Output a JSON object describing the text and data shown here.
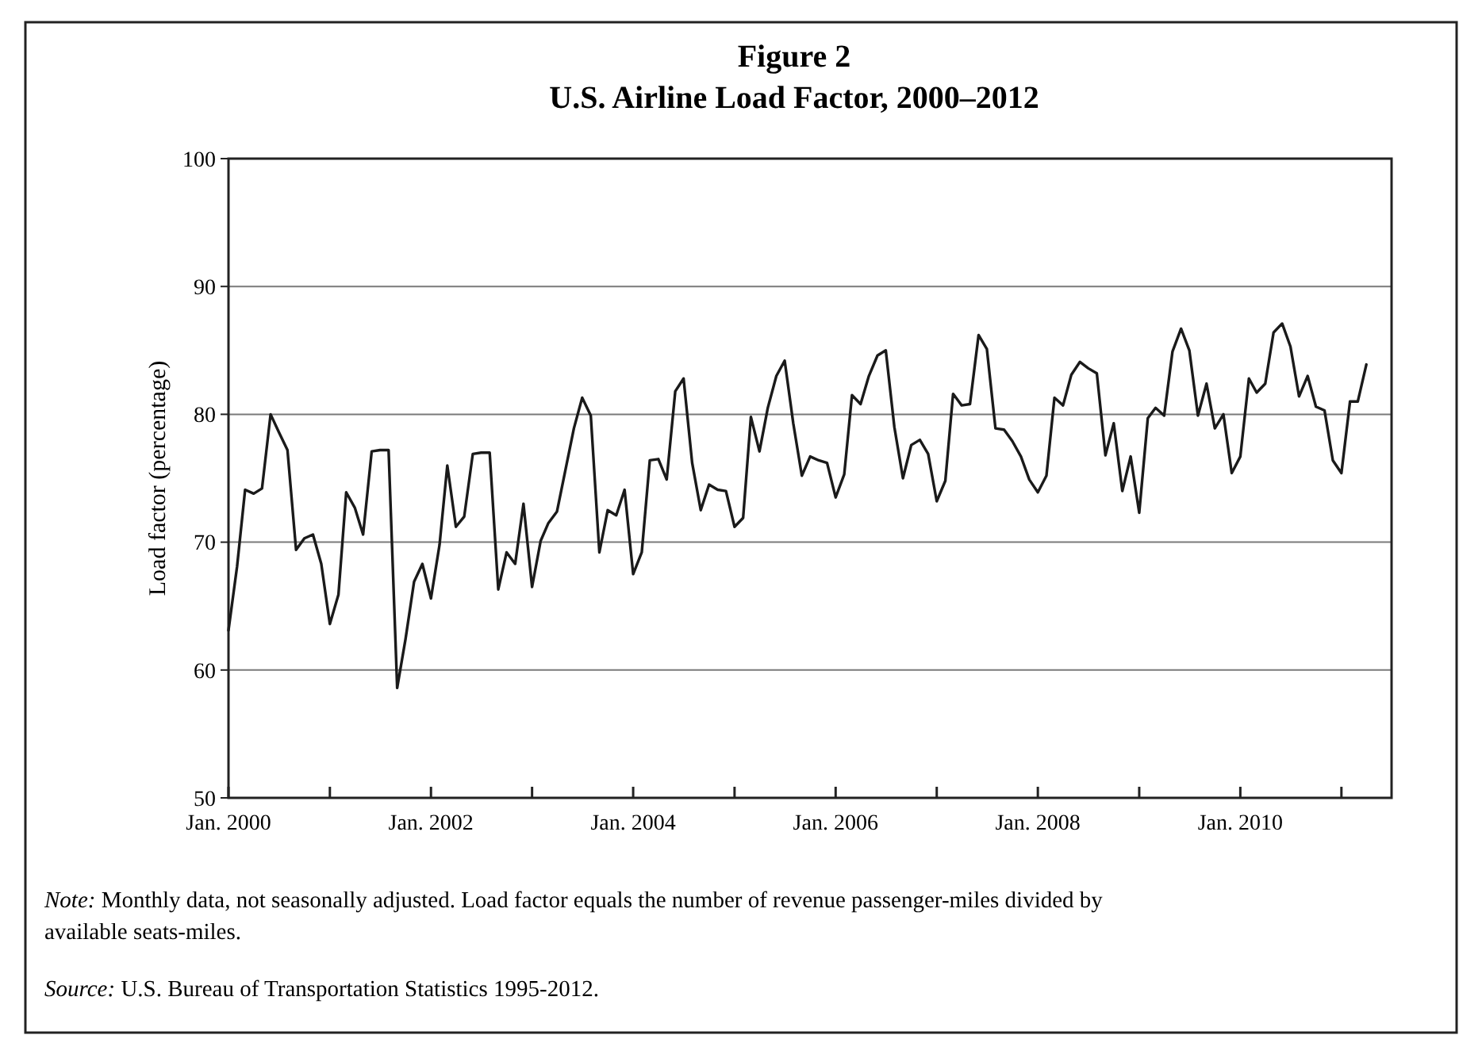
{
  "chart_data": {
    "type": "line",
    "title": "Figure 2",
    "subtitle": "U.S. Airline Load Factor, 2000–2012",
    "ylabel": "Load factor (percentage)",
    "annotations": [
      "Note: Monthly data, not seasonally adjusted. Load factor equals the number of revenue passenger-miles divided by available seats-miles.",
      "Source: U.S. Bureau of Transportation Statistics 1995-2012."
    ],
    "color": "#1a1a1a",
    "grid": "y",
    "xlim": [
      "2000-01",
      "2011-07"
    ],
    "xticks": [
      {
        "value": "2000-01",
        "label": "Jan. 2000"
      },
      {
        "value": "2001-01",
        "label": null
      },
      {
        "value": "2002-01",
        "label": "Jan. 2002"
      },
      {
        "value": "2003-01",
        "label": null
      },
      {
        "value": "2004-01",
        "label": "Jan. 2004"
      },
      {
        "value": "2005-01",
        "label": null
      },
      {
        "value": "2006-01",
        "label": "Jan. 2006"
      },
      {
        "value": "2007-01",
        "label": null
      },
      {
        "value": "2008-01",
        "label": "Jan. 2008"
      },
      {
        "value": "2009-01",
        "label": null
      },
      {
        "value": "2010-01",
        "label": "Jan. 2010"
      },
      {
        "value": "2011-01",
        "label": null
      }
    ],
    "ylim": [
      50,
      100
    ],
    "yticks": [
      50,
      60,
      70,
      80,
      90,
      100
    ],
    "x": [
      "2000-01",
      "2000-02",
      "2000-03",
      "2000-04",
      "2000-05",
      "2000-06",
      "2000-07",
      "2000-08",
      "2000-09",
      "2000-10",
      "2000-11",
      "2000-12",
      "2001-01",
      "2001-02",
      "2001-03",
      "2001-04",
      "2001-05",
      "2001-06",
      "2001-07",
      "2001-08",
      "2001-09",
      "2001-10",
      "2001-11",
      "2001-12",
      "2002-01",
      "2002-02",
      "2002-03",
      "2002-04",
      "2002-05",
      "2002-06",
      "2002-07",
      "2002-08",
      "2002-09",
      "2002-10",
      "2002-11",
      "2002-12",
      "2003-01",
      "2003-02",
      "2003-03",
      "2003-04",
      "2003-05",
      "2003-06",
      "2003-07",
      "2003-08",
      "2003-09",
      "2003-10",
      "2003-11",
      "2003-12",
      "2004-01",
      "2004-02",
      "2004-03",
      "2004-04",
      "2004-05",
      "2004-06",
      "2004-07",
      "2004-08",
      "2004-09",
      "2004-10",
      "2004-11",
      "2004-12",
      "2005-01",
      "2005-02",
      "2005-03",
      "2005-04",
      "2005-05",
      "2005-06",
      "2005-07",
      "2005-08",
      "2005-09",
      "2005-10",
      "2005-11",
      "2005-12",
      "2006-01",
      "2006-02",
      "2006-03",
      "2006-04",
      "2006-05",
      "2006-06",
      "2006-07",
      "2006-08",
      "2006-09",
      "2006-10",
      "2006-11",
      "2006-12",
      "2007-01",
      "2007-02",
      "2007-03",
      "2007-04",
      "2007-05",
      "2007-06",
      "2007-07",
      "2007-08",
      "2007-09",
      "2007-10",
      "2007-11",
      "2007-12",
      "2008-01",
      "2008-02",
      "2008-03",
      "2008-04",
      "2008-05",
      "2008-06",
      "2008-07",
      "2008-08",
      "2008-09",
      "2008-10",
      "2008-11",
      "2008-12",
      "2009-01",
      "2009-02",
      "2009-03",
      "2009-04",
      "2009-05",
      "2009-06",
      "2009-07",
      "2009-08",
      "2009-09",
      "2009-10",
      "2009-11",
      "2009-12",
      "2010-01",
      "2010-02",
      "2010-03",
      "2010-04",
      "2010-05",
      "2010-06",
      "2010-07",
      "2010-08",
      "2010-09",
      "2010-10",
      "2010-11",
      "2010-12",
      "2011-01",
      "2011-02",
      "2011-03",
      "2011-04"
    ],
    "values": [
      63.1,
      68.1,
      74.1,
      73.8,
      74.2,
      80.0,
      78.6,
      77.2,
      69.4,
      70.3,
      70.6,
      68.3,
      63.6,
      65.9,
      73.9,
      72.7,
      70.6,
      77.1,
      77.2,
      77.2,
      58.6,
      62.4,
      66.9,
      68.3,
      65.6,
      69.8,
      76.0,
      71.2,
      72.0,
      76.9,
      77.0,
      77.0,
      66.3,
      69.2,
      68.3,
      73.0,
      66.5,
      70.1,
      71.5,
      72.4,
      75.6,
      78.9,
      81.3,
      79.9,
      69.2,
      72.5,
      72.1,
      74.1,
      67.5,
      69.2,
      76.4,
      76.5,
      74.9,
      81.8,
      82.8,
      76.2,
      72.5,
      74.5,
      74.1,
      74.0,
      71.2,
      71.9,
      79.8,
      77.1,
      80.5,
      83.0,
      84.2,
      79.3,
      75.2,
      76.7,
      76.4,
      76.2,
      73.5,
      75.3,
      81.5,
      80.8,
      83.0,
      84.6,
      85.0,
      79.0,
      75.0,
      77.6,
      78.0,
      76.9,
      73.2,
      74.8,
      81.6,
      80.7,
      80.8,
      86.2,
      85.1,
      78.9,
      78.8,
      77.9,
      76.7,
      74.9,
      73.9,
      75.2,
      81.3,
      80.7,
      83.1,
      84.1,
      83.6,
      83.2,
      76.8,
      79.3,
      74.0,
      76.7,
      72.3,
      79.7,
      80.5,
      79.9,
      84.9,
      86.7,
      85.0,
      79.9,
      82.4,
      78.9,
      80.0,
      75.4,
      76.7,
      82.8,
      81.7,
      82.4,
      86.4,
      87.1,
      85.3,
      81.4,
      83.0,
      80.6,
      80.3,
      76.4,
      75.4,
      81.0,
      81.0,
      83.9
    ]
  }
}
